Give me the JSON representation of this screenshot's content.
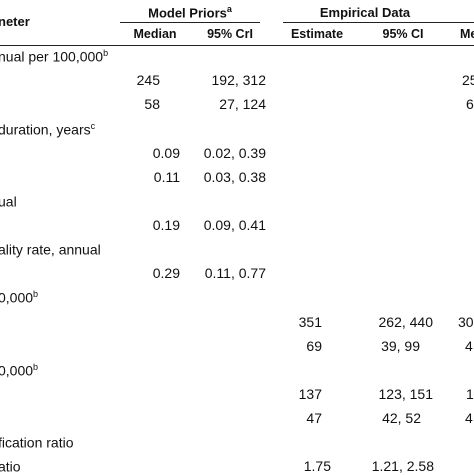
{
  "header": {
    "param_label": "neter",
    "group_model": "Model Priors",
    "group_model_sup": "a",
    "group_empirical": "Empirical Data",
    "col_median": "Median",
    "col_crl": "95% CrI",
    "col_estimate": "Estimate",
    "col_ci": "95% CI",
    "col_cut": "Me"
  },
  "sections": [
    {
      "label": "nual per 100,000",
      "sup": "b"
    },
    {
      "label": "duration, years",
      "sup": "c"
    },
    {
      "label": "ual",
      "sup": ""
    },
    {
      "label": "ality rate, annual",
      "sup": ""
    },
    {
      "label": "0,000",
      "sup": "b"
    },
    {
      "label": "0,000",
      "sup": "b"
    },
    {
      "label": "fication ratio",
      "sup": ""
    },
    {
      "label": "atio",
      "sup": ""
    }
  ],
  "rows": [
    {
      "median": "245",
      "crl": "192, 312",
      "estimate": "",
      "ci": "",
      "cut": "25"
    },
    {
      "median": "58",
      "crl": "27, 124",
      "estimate": "",
      "ci": "",
      "cut": "6"
    },
    {
      "median": "0.09",
      "crl": "0.02, 0.39",
      "estimate": "",
      "ci": "",
      "cut": ""
    },
    {
      "median": "0.11",
      "crl": "0.03, 0.38",
      "estimate": "",
      "ci": "",
      "cut": ""
    },
    {
      "median": "0.19",
      "crl": "0.09, 0.41",
      "estimate": "",
      "ci": "",
      "cut": ""
    },
    {
      "median": "0.29",
      "crl": "0.11, 0.77",
      "estimate": "",
      "ci": "",
      "cut": ""
    },
    {
      "median": "",
      "crl": "",
      "estimate": "351",
      "ci": "262, 440",
      "cut": "30"
    },
    {
      "median": "",
      "crl": "",
      "estimate": "69",
      "ci": "39, 99",
      "cut": "4"
    },
    {
      "median": "",
      "crl": "",
      "estimate": "137",
      "ci": "123, 151",
      "cut": "1"
    },
    {
      "median": "",
      "crl": "",
      "estimate": "47",
      "ci": "42, 52",
      "cut": "4"
    },
    {
      "median": "",
      "crl": "",
      "estimate": "1.75",
      "ci": "1.21, 2.58",
      "cut": ""
    }
  ]
}
